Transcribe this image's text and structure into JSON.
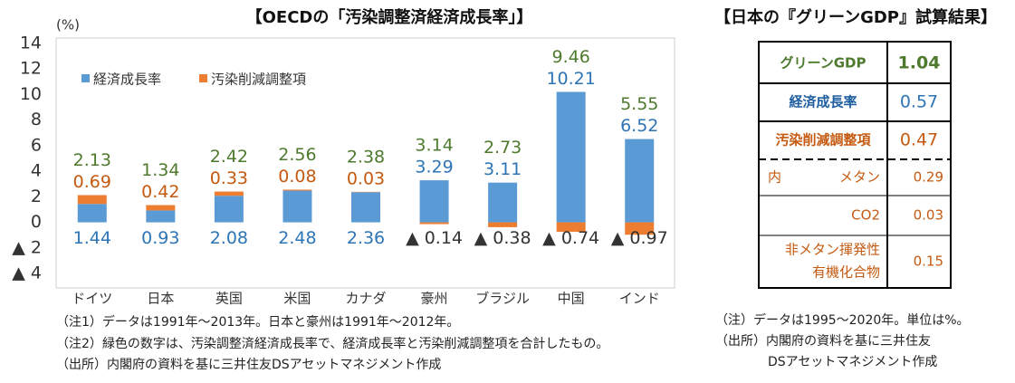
{
  "chart_data": {
    "type": "bar",
    "stacked": true,
    "title": "【OECDの「汚染調整済経済成長率」】",
    "y_label": "(%)",
    "categories": [
      "ドイツ",
      "日本",
      "英国",
      "米国",
      "カナダ",
      "豪州",
      "ブラジル",
      "中国",
      "インド"
    ],
    "series": [
      {
        "name": "経済成長率",
        "color": "#5b9bd5",
        "label_color": "#2e75b6",
        "values": [
          1.44,
          0.93,
          2.08,
          2.48,
          2.36,
          3.29,
          3.11,
          10.21,
          6.52
        ]
      },
      {
        "name": "汚染削減調整項",
        "color": "#ed7d31",
        "label_color": "#c55a11",
        "values": [
          0.69,
          0.42,
          0.33,
          0.08,
          0.03,
          -0.14,
          -0.38,
          -0.74,
          -0.97
        ],
        "value_labels": [
          "0.69",
          "0.42",
          "0.33",
          "0.08",
          "0.03",
          "▲ 0.14",
          "▲ 0.38",
          "▲ 0.74",
          "▲ 0.97"
        ]
      }
    ],
    "totals": [
      2.13,
      1.34,
      2.42,
      2.56,
      2.38,
      3.14,
      2.73,
      9.46,
      5.55
    ],
    "totals_color": "#4e7a2e",
    "ylim": [
      -4,
      14
    ],
    "yticks": [
      {
        "value": -4,
        "label": "▲ 4"
      },
      {
        "value": -2,
        "label": "▲ 2"
      },
      0,
      2,
      4,
      6,
      8,
      10,
      12,
      14
    ],
    "grid": false,
    "legend": "top-left",
    "notes": [
      "（注1）データは1991年～2013年。日本と豪州は1991年～2012年。",
      "（注2）緑色の数字は、汚染調整済経済成長率で、経済成長率と汚染削減調整項を合計したもの。",
      "（出所）内閣府の資料を基に三井住友DSアセットマネジメント作成"
    ]
  },
  "table": {
    "title": "【日本の『グリーンGDP』試算結果】",
    "rows": [
      {
        "label": "グリーンGDP",
        "value": 1.04
      },
      {
        "label": "経済成長率",
        "value": 0.57
      },
      {
        "label": "汚染削減調整項",
        "value": 0.47
      },
      {
        "label": "内",
        "sublabel": "メタン",
        "value": 0.29
      },
      {
        "label": "CO2",
        "value": 0.03
      },
      {
        "label": "非メタン揮発性",
        "sublabel": "有機化合物",
        "value": 0.15
      }
    ],
    "notes": [
      "（注）データは1995～2020年。単位は%。",
      "（出所）内閣府の資料を基に三井住友",
      "DSアセットマネジメント作成"
    ]
  }
}
